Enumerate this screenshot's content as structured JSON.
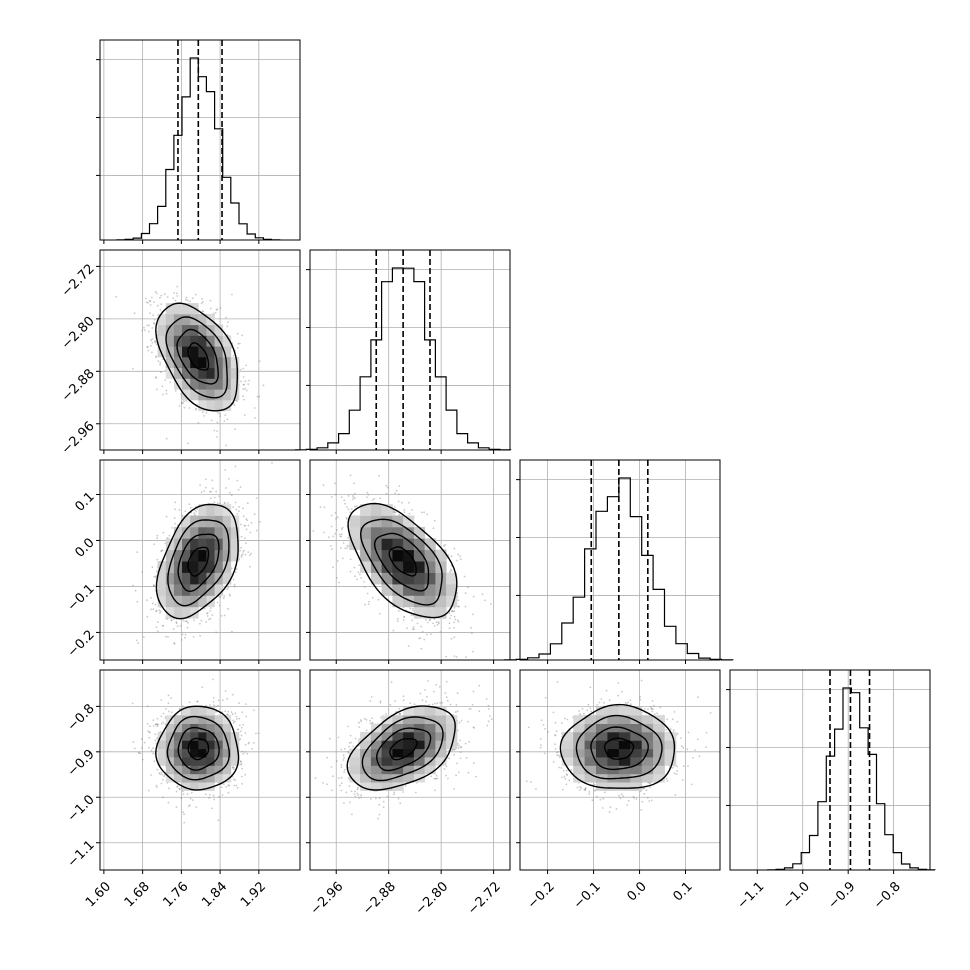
{
  "chart_data": {
    "type": "scatter",
    "title": "",
    "parameters": [
      {
        "mean": 1.795,
        "std": 0.042,
        "qlines": [
          1.753,
          1.795,
          1.844
        ],
        "range": [
          1.592,
          2.005
        ],
        "ticks": [
          1.6,
          1.68,
          1.76,
          1.84,
          1.92
        ],
        "tick_labels": [
          "1.60",
          "1.68",
          "1.76",
          "1.84",
          "1.92"
        ]
      },
      {
        "mean": -2.858,
        "std": 0.041,
        "qlines": [
          -2.899,
          -2.858,
          -2.817
        ],
        "range": [
          -3.0,
          -2.695
        ],
        "ticks": [
          -2.96,
          -2.88,
          -2.8,
          -2.72
        ],
        "tick_labels": [
          "−2.96",
          "−2.88",
          "−2.80",
          "−2.72"
        ]
      },
      {
        "mean": -0.045,
        "std": 0.062,
        "qlines": [
          -0.105,
          -0.045,
          0.018
        ],
        "range": [
          -0.26,
          0.175
        ],
        "ticks": [
          -0.2,
          -0.1,
          0.0,
          0.1
        ],
        "tick_labels": [
          "−0.2",
          "−0.1",
          "0.0",
          "0.1"
        ]
      },
      {
        "mean": -0.893,
        "std": 0.046,
        "qlines": [
          -0.94,
          -0.895,
          -0.853
        ],
        "range": [
          -1.16,
          -0.72
        ],
        "ticks": [
          -1.1,
          -1.0,
          -0.9,
          -0.8
        ],
        "tick_labels": [
          "−1.1",
          "−1.0",
          "−0.9",
          "−0.8"
        ]
      }
    ],
    "correlations": [
      {
        "pair": [
          0,
          1
        ],
        "rho": -0.45
      },
      {
        "pair": [
          0,
          2
        ],
        "rho": 0.4
      },
      {
        "pair": [
          1,
          2
        ],
        "rho": -0.55
      },
      {
        "pair": [
          0,
          3
        ],
        "rho": 0.0
      },
      {
        "pair": [
          1,
          3
        ],
        "rho": 0.45
      },
      {
        "pair": [
          2,
          3
        ],
        "rho": 0.0
      }
    ],
    "quantiles": [
      0.16,
      0.5,
      0.84
    ],
    "contour_levels_sigma": [
      0.5,
      1.0,
      1.5,
      2.0
    ],
    "histogram_bins": 20,
    "grid": true,
    "colors": {
      "points": "#888888",
      "density": "#000000",
      "lines": "#000000"
    }
  }
}
